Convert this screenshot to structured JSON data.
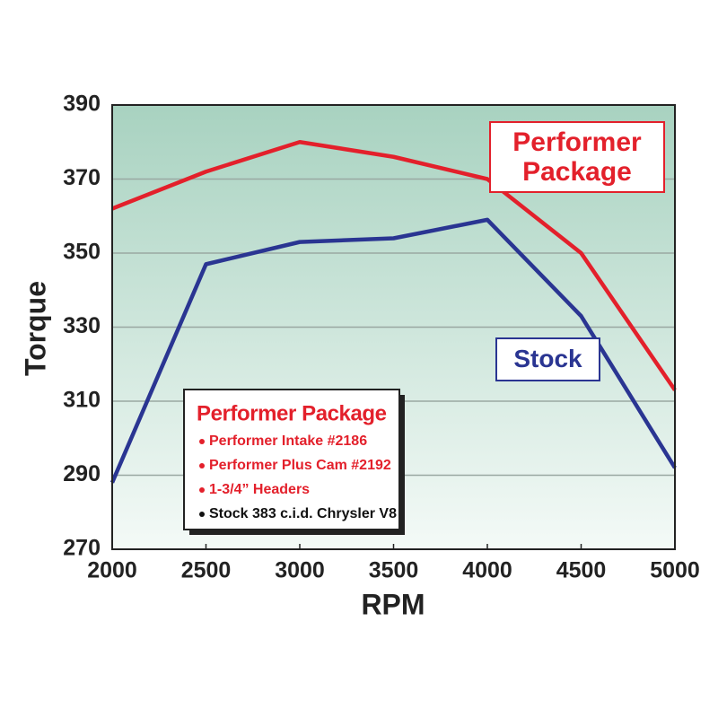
{
  "chart_data": {
    "type": "line",
    "x_label": "RPM",
    "y_label": "Torque",
    "x": [
      2000,
      2500,
      3000,
      3500,
      4000,
      4500,
      5000
    ],
    "xlim": [
      2000,
      5000
    ],
    "xticks": [
      2000,
      2500,
      3000,
      3500,
      4000,
      4500,
      5000
    ],
    "ylim": [
      270,
      390
    ],
    "yticks": [
      270,
      290,
      310,
      330,
      350,
      370,
      390
    ],
    "grid": true,
    "series": [
      {
        "name": "Performer Package",
        "color": "#e3202b",
        "values": [
          362,
          372,
          380,
          376,
          370,
          350,
          313
        ]
      },
      {
        "name": "Stock",
        "color": "#2a3592",
        "values": [
          288,
          347,
          353,
          354,
          359,
          333,
          292
        ]
      }
    ],
    "legend_box": {
      "title": "Performer Package",
      "items": [
        {
          "text": "Performer Intake #2186",
          "color": "#e3202b"
        },
        {
          "text": "Performer Plus Cam #2192",
          "color": "#e3202b"
        },
        {
          "text": "1-3/4” Headers",
          "color": "#e3202b"
        },
        {
          "text": "Stock 383 c.i.d. Chrysler V8",
          "color": "#111111"
        }
      ]
    }
  }
}
